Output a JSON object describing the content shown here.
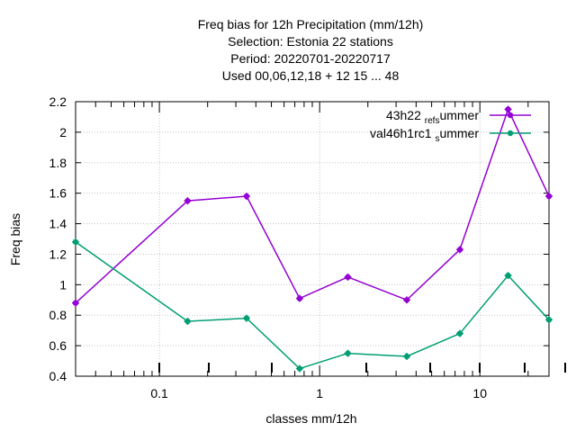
{
  "chart_data": {
    "type": "line",
    "title_lines": [
      "Freq bias  for 12h Precipitation (mm/12h)",
      "Selection: Estonia      22 stations",
      "Period: 20220701-20220717",
      "Used  00,06,12,18  + 12 15 ... 48"
    ],
    "xlabel": "classes mm/12h",
    "ylabel": "Freq bias",
    "x_scale": "log",
    "xlim": [
      0.03,
      27
    ],
    "ylim": [
      0.4,
      2.2
    ],
    "x_ticks": [
      {
        "value": 0.1,
        "label": "0.1"
      },
      {
        "value": 1,
        "label": "1"
      },
      {
        "value": 10,
        "label": "10"
      }
    ],
    "y_ticks": [
      {
        "value": 0.4,
        "label": "0.4"
      },
      {
        "value": 0.6,
        "label": "0.6"
      },
      {
        "value": 0.8,
        "label": "0.8"
      },
      {
        "value": 1.0,
        "label": "1"
      },
      {
        "value": 1.2,
        "label": "1.2"
      },
      {
        "value": 1.4,
        "label": "1.4"
      },
      {
        "value": 1.6,
        "label": "1.6"
      },
      {
        "value": 1.8,
        "label": "1.8"
      },
      {
        "value": 2.0,
        "label": "2"
      },
      {
        "value": 2.2,
        "label": "2.2"
      }
    ],
    "grid": true,
    "legend_position": "top-right",
    "x": [
      0.03,
      0.15,
      0.35,
      0.75,
      1.5,
      3.5,
      7.5,
      15,
      27
    ],
    "series": [
      {
        "name_parts": [
          {
            "text": "43h22_ref_summer",
            "segments": [
              [
                "43h22 ",
                "normal"
              ],
              [
                "ref",
                "sub"
              ],
              [
                "s",
                "sub"
              ],
              [
                "ummer",
                "normal"
              ]
            ]
          }
        ],
        "color": "#9400d3",
        "values": [
          0.88,
          1.55,
          1.58,
          0.91,
          1.05,
          0.9,
          1.23,
          2.15,
          1.58
        ]
      },
      {
        "name_parts": [
          {
            "text": "val46h1rc1_summer",
            "segments": [
              [
                "val46h1rc1 ",
                "normal"
              ],
              [
                "s",
                "sub"
              ],
              [
                "ummer",
                "normal"
              ]
            ]
          }
        ],
        "color": "#009e73",
        "values": [
          1.28,
          0.76,
          0.78,
          0.45,
          0.55,
          0.53,
          0.68,
          1.06,
          0.77
        ]
      }
    ]
  }
}
